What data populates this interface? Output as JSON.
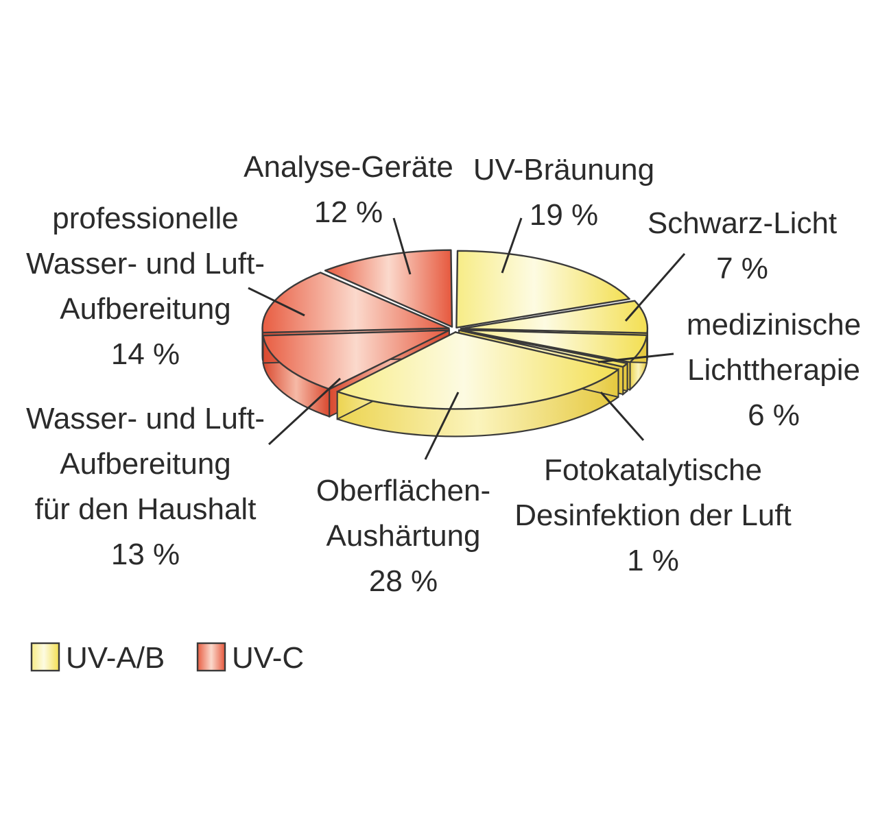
{
  "chart_data": {
    "type": "pie",
    "style": "3d-exploded",
    "slices": [
      {
        "label_lines": [
          "UV-Bräunung"
        ],
        "value_text": "19 %",
        "value": 19,
        "group": "UV-A/B"
      },
      {
        "label_lines": [
          "Schwarz-Licht"
        ],
        "value_text": "7 %",
        "value": 7,
        "group": "UV-A/B"
      },
      {
        "label_lines": [
          "medizinische",
          "Lichttherapie"
        ],
        "value_text": "6 %",
        "value": 6,
        "group": "UV-A/B"
      },
      {
        "label_lines": [
          "Fotokatalytische",
          "Desinfektion der Luft"
        ],
        "value_text": "1 %",
        "value": 1,
        "group": "UV-A/B"
      },
      {
        "label_lines": [
          "Oberflächen-",
          "Aushärtung"
        ],
        "value_text": "28 %",
        "value": 28,
        "group": "UV-A/B"
      },
      {
        "label_lines": [
          "Wasser- und Luft-",
          "Aufbereitung",
          "für den Haushalt"
        ],
        "value_text": "13 %",
        "value": 13,
        "group": "UV-C"
      },
      {
        "label_lines": [
          "professionelle",
          "Wasser- und Luft-",
          "Aufbereitung"
        ],
        "value_text": "14 %",
        "value": 14,
        "group": "UV-C"
      },
      {
        "label_lines": [
          "Analyse-Geräte"
        ],
        "value_text": "12 %",
        "value": 12,
        "group": "UV-C"
      }
    ],
    "legend": [
      {
        "name": "UV-A/B",
        "color": "#f6e36a"
      },
      {
        "name": "UV-C",
        "color": "#e96a4f"
      }
    ],
    "legend_position": "bottom-left"
  }
}
